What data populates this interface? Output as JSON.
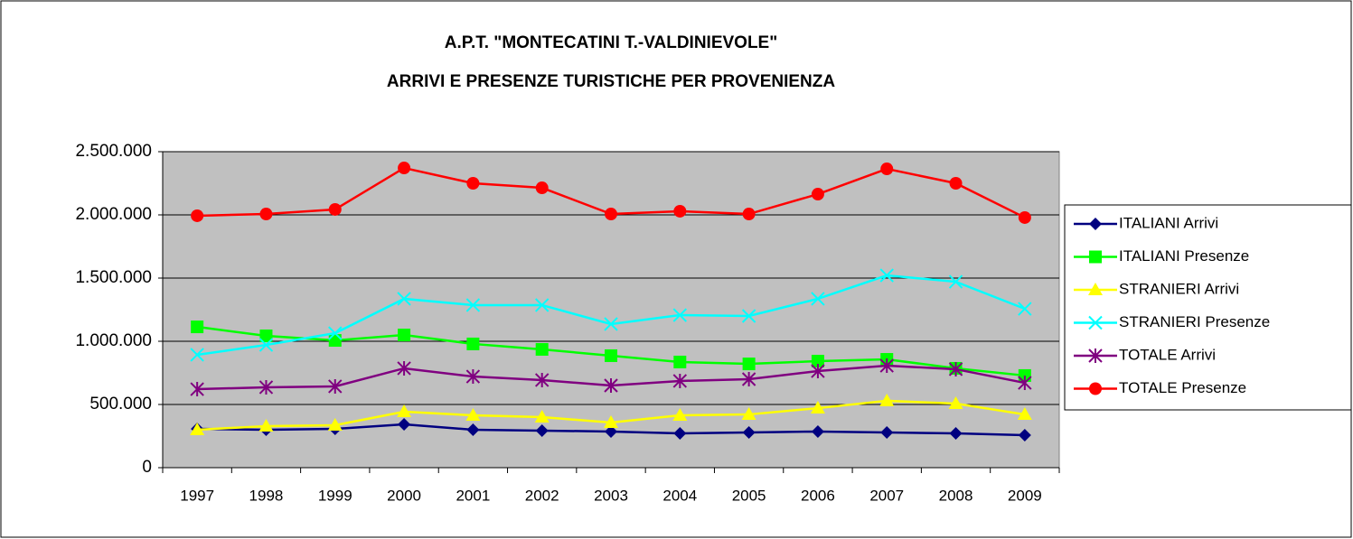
{
  "chart_data": {
    "type": "line",
    "title": [
      "A.P.T. \"MONTECATINI T.-VALDINIEVOLE\"",
      "ARRIVI E PRESENZE TURISTICHE PER PROVENIENZA"
    ],
    "categories": [
      "1997",
      "1998",
      "1999",
      "2000",
      "2001",
      "2002",
      "2003",
      "2004",
      "2005",
      "2006",
      "2007",
      "2008",
      "2009"
    ],
    "series": [
      {
        "name": "ITALIANI Arrivi",
        "color": "#000080",
        "marker": "diamond",
        "values": [
          307000,
          300000,
          307000,
          343000,
          300000,
          293000,
          286000,
          271000,
          279000,
          286000,
          279000,
          271000,
          257000
        ]
      },
      {
        "name": "ITALIANI Presenze",
        "color": "#00ff00",
        "marker": "square",
        "values": [
          1114000,
          1043000,
          1007000,
          1050000,
          979000,
          936000,
          886000,
          836000,
          821000,
          843000,
          857000,
          786000,
          729000
        ]
      },
      {
        "name": "STRANIERI Arrivi",
        "color": "#ffff00",
        "marker": "triangle",
        "values": [
          300000,
          329000,
          336000,
          443000,
          414000,
          400000,
          357000,
          414000,
          421000,
          471000,
          529000,
          507000,
          421000
        ]
      },
      {
        "name": "STRANIERI Presenze",
        "color": "#00ffff",
        "marker": "x",
        "values": [
          893000,
          971000,
          1064000,
          1336000,
          1286000,
          1286000,
          1136000,
          1207000,
          1200000,
          1336000,
          1521000,
          1471000,
          1257000
        ]
      },
      {
        "name": "TOTALE Arrivi",
        "color": "#800080",
        "marker": "star",
        "values": [
          621000,
          636000,
          643000,
          786000,
          721000,
          693000,
          650000,
          686000,
          700000,
          764000,
          807000,
          779000,
          671000
        ]
      },
      {
        "name": "TOTALE Presenze",
        "color": "#ff0000",
        "marker": "circle",
        "values": [
          1993000,
          2007000,
          2043000,
          2371000,
          2250000,
          2214000,
          2007000,
          2029000,
          2007000,
          2164000,
          2364000,
          2250000,
          1979000
        ]
      }
    ],
    "ylim": [
      0,
      2500000
    ],
    "yticks": [
      0,
      {
        "value": 500000,
        "label": "500.000"
      },
      {
        "value": 1000000,
        "label": "1.000.000"
      },
      {
        "value": 1500000,
        "label": "1.500.000"
      },
      {
        "value": 2000000,
        "label": "2.000.000"
      },
      {
        "value": 2500000,
        "label": "2.500.000"
      }
    ],
    "grid": true,
    "plot_background": "#c0c0c0",
    "legend": "right"
  }
}
